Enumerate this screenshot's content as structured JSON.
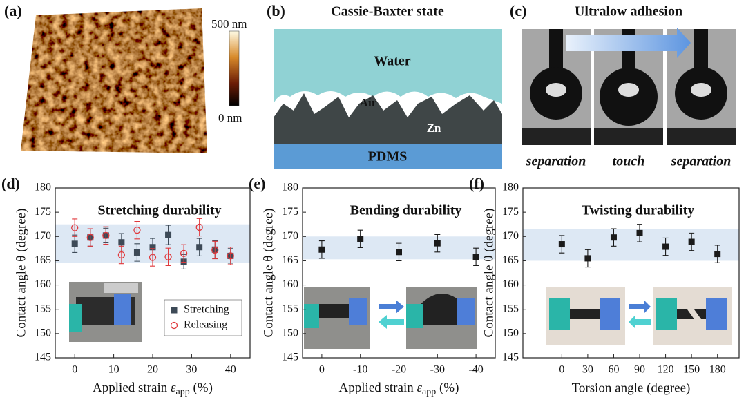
{
  "top_panels": {
    "a": {
      "label": "(a)",
      "colorbar_max": "500 nm",
      "colorbar_min": "0 nm"
    },
    "b": {
      "label": "(b)",
      "title": "Cassie-Baxter state",
      "water": "Water",
      "air": "Air",
      "zn": "Zn",
      "pdms": "PDMS"
    },
    "c": {
      "label": "(c)",
      "title": "Ultralow adhesion",
      "captions": [
        "separation",
        "touch",
        "separation"
      ]
    }
  },
  "chart_data": [
    {
      "type": "scatter",
      "label": "(d)",
      "title": "Stretching durability",
      "xlabel": {
        "text": "Applied strain ",
        "symbol": "ε",
        "sub": "app",
        "unit": " (%)"
      },
      "ylabel": "Contact angle θ (degree)",
      "x": [
        0,
        4,
        8,
        12,
        16,
        20,
        24,
        28,
        32,
        36,
        40
      ],
      "series": [
        {
          "name": "Stretching",
          "color": "#3d4a57",
          "marker": "square",
          "values": [
            168.5,
            169.8,
            170.2,
            168.8,
            166.7,
            167.8,
            170.3,
            164.8,
            167.8,
            167.3,
            166.0
          ],
          "errors": [
            1.8,
            1.8,
            1.5,
            1.8,
            1.8,
            1.8,
            2.0,
            1.5,
            1.8,
            1.8,
            1.5
          ]
        },
        {
          "name": "Releasing",
          "color": "#e0383c",
          "marker": "circle",
          "values": [
            171.8,
            169.8,
            170.2,
            166.2,
            171.3,
            165.7,
            165.8,
            166.5,
            171.9,
            167.2,
            166.0
          ],
          "errors": [
            1.8,
            1.8,
            1.8,
            1.8,
            1.8,
            1.8,
            1.8,
            1.8,
            1.8,
            1.8,
            1.8
          ]
        }
      ],
      "band": [
        164.5,
        172.5
      ],
      "band_color": "#dde8f4",
      "xlim": [
        -5,
        45
      ],
      "xticks": [
        0,
        10,
        20,
        30,
        40
      ],
      "ylim": [
        145,
        180
      ],
      "yticks": [
        145,
        150,
        155,
        160,
        165,
        170,
        175,
        180
      ],
      "legend": "lower right"
    },
    {
      "type": "scatter",
      "label": "(e)",
      "title": "Bending durability",
      "xlabel": {
        "text": "Applied strain ",
        "symbol": "ε",
        "sub": "app",
        "unit": " (%)"
      },
      "ylabel": "Contact angle θ (degree)",
      "categories": [
        "0",
        "-10",
        "-20",
        "-30",
        "-40"
      ],
      "series": [
        {
          "color": "#1a1a1a",
          "marker": "square",
          "values": [
            167.3,
            169.5,
            166.8,
            168.6,
            165.8
          ],
          "errors": [
            1.8,
            1.8,
            1.8,
            1.8,
            1.8
          ]
        }
      ],
      "band": [
        165.3,
        170
      ],
      "band_color": "#dde8f4",
      "ylim": [
        145,
        180
      ],
      "yticks": [
        145,
        150,
        155,
        160,
        165,
        170,
        175,
        180
      ]
    },
    {
      "type": "scatter",
      "label": "(f)",
      "title": "Twisting durability",
      "xlabel": "Torsion angle (degree)",
      "ylabel": "Contact angle θ (degree)",
      "x": [
        0,
        30,
        60,
        90,
        120,
        150,
        180
      ],
      "series": [
        {
          "color": "#1a1a1a",
          "marker": "square",
          "values": [
            168.4,
            165.5,
            169.8,
            170.7,
            167.9,
            168.9,
            166.4
          ],
          "errors": [
            1.8,
            1.8,
            1.8,
            1.8,
            1.8,
            1.8,
            1.8
          ]
        }
      ],
      "band": [
        165,
        171.5
      ],
      "band_color": "#dde8f4",
      "xlim": [
        -45,
        205
      ],
      "xticks": [
        0,
        30,
        60,
        90,
        120,
        150,
        180
      ],
      "ylim": [
        145,
        180
      ],
      "yticks": [
        145,
        150,
        155,
        160,
        165,
        170,
        175,
        180
      ]
    }
  ]
}
